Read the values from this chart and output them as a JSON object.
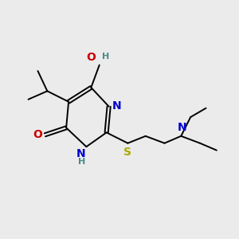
{
  "bg_color": "#ebebeb",
  "atom_colors": {
    "N": "#0000cc",
    "O": "#cc0000",
    "S": "#aaaa00",
    "C": "#000000",
    "H": "#4a8a8a"
  },
  "font_size_atom": 10,
  "font_size_h": 8,
  "figsize": [
    3.0,
    3.0
  ],
  "dpi": 100,
  "lw": 1.4
}
